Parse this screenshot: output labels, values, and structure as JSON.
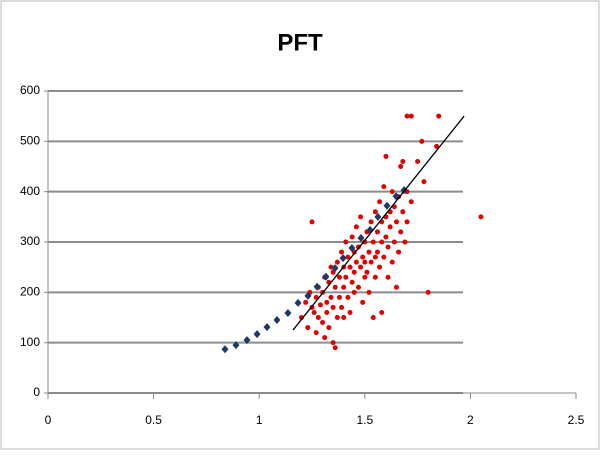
{
  "chart_data": {
    "type": "scatter",
    "title": "PFT",
    "xlim": [
      0,
      2.5
    ],
    "xticks": [
      0,
      0.5,
      1,
      1.5,
      2,
      2.5
    ],
    "ylim": [
      0,
      600
    ],
    "yticks": [
      0,
      100,
      200,
      300,
      400,
      500,
      600
    ],
    "grid": true,
    "series": [
      {
        "color": "#e00000",
        "marker": "circle",
        "x": [
          1.2,
          1.22,
          1.23,
          1.24,
          1.25,
          1.25,
          1.26,
          1.27,
          1.27,
          1.28,
          1.28,
          1.29,
          1.3,
          1.3,
          1.31,
          1.31,
          1.32,
          1.32,
          1.33,
          1.33,
          1.34,
          1.34,
          1.35,
          1.35,
          1.35,
          1.36,
          1.36,
          1.37,
          1.37,
          1.38,
          1.38,
          1.39,
          1.39,
          1.4,
          1.4,
          1.4,
          1.41,
          1.41,
          1.42,
          1.42,
          1.43,
          1.43,
          1.44,
          1.44,
          1.45,
          1.45,
          1.45,
          1.46,
          1.46,
          1.47,
          1.47,
          1.48,
          1.48,
          1.49,
          1.49,
          1.5,
          1.5,
          1.5,
          1.51,
          1.51,
          1.52,
          1.52,
          1.53,
          1.53,
          1.54,
          1.54,
          1.55,
          1.55,
          1.55,
          1.56,
          1.56,
          1.57,
          1.57,
          1.58,
          1.58,
          1.58,
          1.59,
          1.59,
          1.6,
          1.6,
          1.6,
          1.61,
          1.61,
          1.62,
          1.62,
          1.63,
          1.63,
          1.64,
          1.64,
          1.65,
          1.65,
          1.66,
          1.66,
          1.67,
          1.67,
          1.68,
          1.68,
          1.69,
          1.7,
          1.7,
          1.7,
          1.72,
          1.72,
          1.75,
          1.77,
          1.78,
          1.8,
          1.84,
          1.85,
          2.05
        ],
        "y": [
          150,
          180,
          130,
          200,
          170,
          340,
          160,
          120,
          190,
          210,
          150,
          175,
          140,
          200,
          110,
          230,
          180,
          160,
          220,
          130,
          250,
          190,
          170,
          100,
          240,
          90,
          210,
          260,
          150,
          230,
          190,
          280,
          170,
          250,
          210,
          150,
          300,
          230,
          190,
          270,
          250,
          160,
          310,
          220,
          280,
          200,
          240,
          330,
          260,
          290,
          210,
          250,
          350,
          270,
          180,
          300,
          230,
          260,
          320,
          240,
          280,
          200,
          340,
          260,
          300,
          150,
          360,
          270,
          230,
          320,
          280,
          250,
          380,
          300,
          340,
          160,
          270,
          410,
          470,
          350,
          310,
          230,
          290,
          360,
          330,
          400,
          260,
          300,
          370,
          340,
          210,
          390,
          280,
          450,
          320,
          460,
          360,
          300,
          550,
          400,
          340,
          550,
          380,
          460,
          500,
          420,
          200,
          490,
          550,
          350
        ]
      },
      {
        "color": "#1f3864",
        "marker": "diamond",
        "x": [
          0.838,
          0.89,
          0.942,
          0.99,
          1.037,
          1.084,
          1.136,
          1.184,
          1.231,
          1.274,
          1.316,
          1.359,
          1.397,
          1.439,
          1.482,
          1.525,
          1.562,
          1.605,
          1.648,
          1.686
        ],
        "y": [
          87,
          95,
          105,
          117,
          131,
          145,
          159,
          179,
          193,
          211,
          231,
          248,
          268,
          288,
          308,
          324,
          350,
          372,
          391,
          403
        ]
      }
    ],
    "trendline": {
      "color": "#000000",
      "x": [
        1.16,
        1.97
      ],
      "y": [
        125,
        550
      ]
    }
  }
}
